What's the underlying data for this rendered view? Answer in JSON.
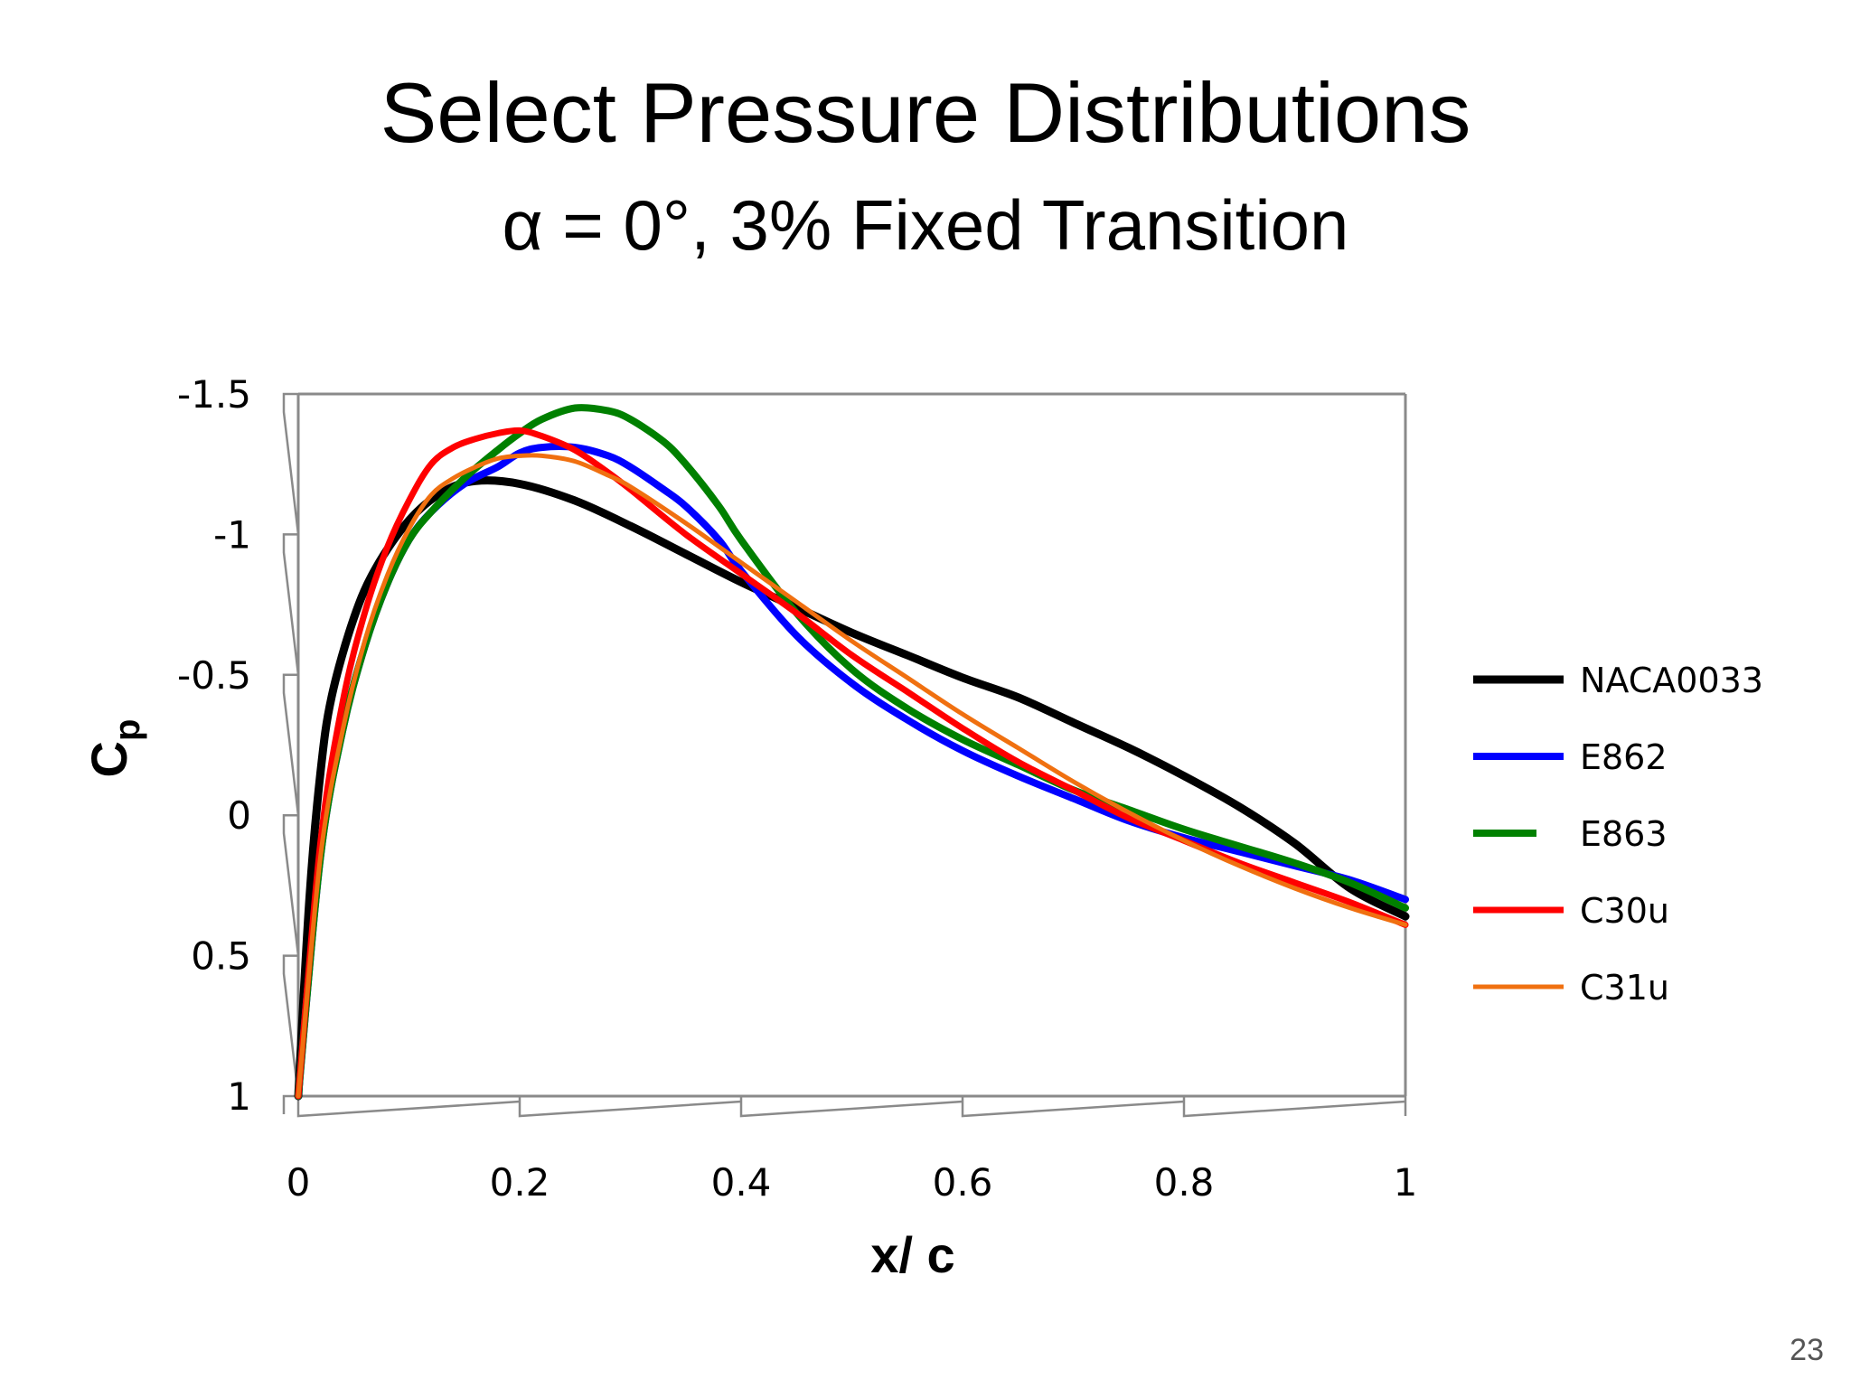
{
  "slide": {
    "title": "Select Pressure Distributions",
    "subtitle": "α = 0°, 3% Fixed Transition",
    "page_number": "23"
  },
  "chart_data": {
    "type": "line",
    "title": "",
    "xlabel": "x/ c",
    "ylabel": "Cp",
    "ylabel_main": "C",
    "ylabel_sub": "p",
    "xlim": [
      0,
      1
    ],
    "ylim": [
      -1.5,
      1
    ],
    "y_inverted": true,
    "x_ticks": [
      "0",
      "0.2",
      "0.4",
      "0.6",
      "0.8",
      "1"
    ],
    "x_tick_values": [
      0,
      0.2,
      0.4,
      0.6,
      0.8,
      1
    ],
    "y_ticks": [
      "-1.5",
      "-1",
      "-0.5",
      "0",
      "0.5",
      "1"
    ],
    "y_tick_values": [
      -1.5,
      -1,
      -0.5,
      0,
      0.5,
      1
    ],
    "grid": false,
    "legend_position": "right",
    "series": [
      {
        "name": "NACA0033",
        "color": "#000000",
        "x": [
          0,
          0.01,
          0.02,
          0.03,
          0.05,
          0.07,
          0.1,
          0.13,
          0.16,
          0.2,
          0.25,
          0.3,
          0.35,
          0.4,
          0.45,
          0.5,
          0.55,
          0.6,
          0.65,
          0.7,
          0.75,
          0.8,
          0.85,
          0.9,
          0.95,
          1.0
        ],
        "y": [
          1.0,
          0.3,
          -0.15,
          -0.42,
          -0.7,
          -0.88,
          -1.05,
          -1.15,
          -1.19,
          -1.18,
          -1.12,
          -1.03,
          -0.93,
          -0.83,
          -0.74,
          -0.65,
          -0.57,
          -0.49,
          -0.42,
          -0.33,
          -0.24,
          -0.14,
          -0.03,
          0.1,
          0.26,
          0.36
        ]
      },
      {
        "name": "E862",
        "color": "#0000ff",
        "x": [
          0,
          0.02,
          0.04,
          0.06,
          0.08,
          0.1,
          0.12,
          0.15,
          0.18,
          0.2,
          0.22,
          0.25,
          0.28,
          0.3,
          0.33,
          0.35,
          0.38,
          0.4,
          0.45,
          0.5,
          0.55,
          0.6,
          0.65,
          0.7,
          0.75,
          0.8,
          0.85,
          0.9,
          0.95,
          1.0
        ],
        "y": [
          1.0,
          0.15,
          -0.3,
          -0.6,
          -0.82,
          -0.98,
          -1.08,
          -1.18,
          -1.24,
          -1.29,
          -1.31,
          -1.31,
          -1.28,
          -1.24,
          -1.16,
          -1.1,
          -0.98,
          -0.87,
          -0.64,
          -0.47,
          -0.34,
          -0.23,
          -0.14,
          -0.06,
          0.02,
          0.08,
          0.13,
          0.18,
          0.23,
          0.3
        ]
      },
      {
        "name": "E863",
        "color": "#008000",
        "x": [
          0,
          0.02,
          0.04,
          0.06,
          0.08,
          0.1,
          0.12,
          0.15,
          0.18,
          0.2,
          0.22,
          0.25,
          0.28,
          0.3,
          0.33,
          0.35,
          0.38,
          0.4,
          0.45,
          0.5,
          0.55,
          0.6,
          0.65,
          0.7,
          0.75,
          0.8,
          0.85,
          0.9,
          0.95,
          1.0
        ],
        "y": [
          1.0,
          0.15,
          -0.3,
          -0.6,
          -0.82,
          -0.98,
          -1.08,
          -1.2,
          -1.3,
          -1.36,
          -1.41,
          -1.45,
          -1.44,
          -1.41,
          -1.33,
          -1.25,
          -1.1,
          -0.98,
          -0.72,
          -0.52,
          -0.38,
          -0.27,
          -0.18,
          -0.09,
          -0.02,
          0.05,
          0.11,
          0.17,
          0.24,
          0.33
        ]
      },
      {
        "name": "C30u",
        "color": "#ff0000",
        "x": [
          0,
          0.02,
          0.04,
          0.06,
          0.08,
          0.1,
          0.12,
          0.14,
          0.16,
          0.18,
          0.2,
          0.22,
          0.25,
          0.28,
          0.3,
          0.35,
          0.4,
          0.45,
          0.5,
          0.55,
          0.6,
          0.65,
          0.7,
          0.75,
          0.8,
          0.85,
          0.9,
          0.95,
          1.0
        ],
        "y": [
          1.0,
          0.1,
          -0.4,
          -0.72,
          -0.95,
          -1.12,
          -1.25,
          -1.31,
          -1.34,
          -1.36,
          -1.37,
          -1.35,
          -1.3,
          -1.22,
          -1.16,
          -1.0,
          -0.86,
          -0.72,
          -0.57,
          -0.44,
          -0.31,
          -0.19,
          -0.09,
          0.01,
          0.09,
          0.17,
          0.24,
          0.31,
          0.39
        ]
      },
      {
        "name": "C31u",
        "color": "#f07010",
        "x": [
          0,
          0.02,
          0.04,
          0.06,
          0.08,
          0.1,
          0.12,
          0.14,
          0.16,
          0.18,
          0.2,
          0.22,
          0.25,
          0.28,
          0.3,
          0.35,
          0.4,
          0.45,
          0.5,
          0.55,
          0.6,
          0.65,
          0.7,
          0.75,
          0.8,
          0.85,
          0.9,
          0.95,
          1.0
        ],
        "y": [
          1.0,
          0.15,
          -0.3,
          -0.62,
          -0.85,
          -1.02,
          -1.14,
          -1.2,
          -1.24,
          -1.27,
          -1.28,
          -1.28,
          -1.26,
          -1.21,
          -1.17,
          -1.04,
          -0.9,
          -0.76,
          -0.62,
          -0.49,
          -0.36,
          -0.24,
          -0.12,
          -0.01,
          0.09,
          0.18,
          0.26,
          0.33,
          0.39
        ]
      }
    ]
  }
}
